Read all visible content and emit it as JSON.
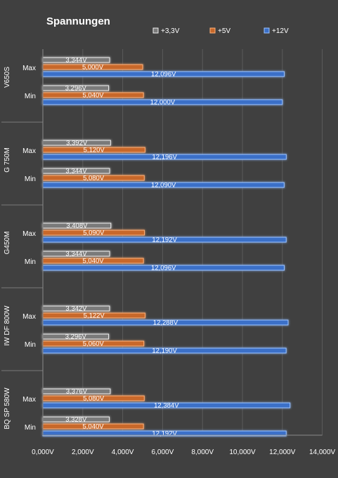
{
  "chart_data": {
    "type": "bar",
    "orientation": "horizontal",
    "title": "Spannungen",
    "unit": "V",
    "xlim": [
      0,
      14
    ],
    "xticks": [
      "0,000V",
      "2,000V",
      "4,000V",
      "6,000V",
      "8,000V",
      "10,000V",
      "12,000V",
      "14,000V"
    ],
    "grid": "vertical",
    "legend_position": "top-right",
    "series": [
      {
        "name": "+3,3V",
        "color": "#7a7a7a",
        "edge": "#f0f0f0"
      },
      {
        "name": "+5V",
        "color": "#c8682a",
        "edge": "#ffb27a"
      },
      {
        "name": "+12V",
        "color": "#3a6fc8",
        "edge": "#9cc4ff"
      }
    ],
    "groups": [
      {
        "name": "V650S",
        "rows": [
          {
            "label": "Max",
            "values": [
              3.344,
              5.0,
              12.096
            ],
            "labels": [
              "3,344V",
              "5,000V",
              "12,096V"
            ]
          },
          {
            "label": "Min",
            "values": [
              3.296,
              5.04,
              12.0
            ],
            "labels": [
              "3,296V",
              "5,040V",
              "12,000V"
            ]
          }
        ]
      },
      {
        "name": "G 750M",
        "rows": [
          {
            "label": "Max",
            "values": [
              3.392,
              5.12,
              12.196
            ],
            "labels": [
              "3,392V",
              "5,120V",
              "12,196V"
            ]
          },
          {
            "label": "Min",
            "values": [
              3.344,
              5.08,
              12.09
            ],
            "labels": [
              "3,344V",
              "5,080V",
              "12,090V"
            ]
          }
        ]
      },
      {
        "name": "G450M",
        "rows": [
          {
            "label": "Max",
            "values": [
              3.408,
              5.09,
              12.192
            ],
            "labels": [
              "3,408V",
              "5,090V",
              "12,192V"
            ]
          },
          {
            "label": "Min",
            "values": [
              3.344,
              5.04,
              12.096
            ],
            "labels": [
              "3,344V",
              "5,040V",
              "12,096V"
            ]
          }
        ]
      },
      {
        "name": "IW DF 800W",
        "rows": [
          {
            "label": "Max",
            "values": [
              3.342,
              5.122,
              12.288
            ],
            "labels": [
              "3,342V",
              "5,122V",
              "12,288V"
            ]
          },
          {
            "label": "Min",
            "values": [
              3.296,
              5.06,
              12.19
            ],
            "labels": [
              "3,296V",
              "5,060V",
              "12,190V"
            ]
          }
        ]
      },
      {
        "name": "BQ SP 580W",
        "rows": [
          {
            "label": "Max",
            "values": [
              3.376,
              5.08,
              12.384
            ],
            "labels": [
              "3,376V",
              "5,080V",
              "12,384V"
            ]
          },
          {
            "label": "Min",
            "values": [
              3.328,
              5.04,
              12.192
            ],
            "labels": [
              "3,328V",
              "5,040V",
              "12,192V"
            ]
          }
        ]
      }
    ]
  }
}
